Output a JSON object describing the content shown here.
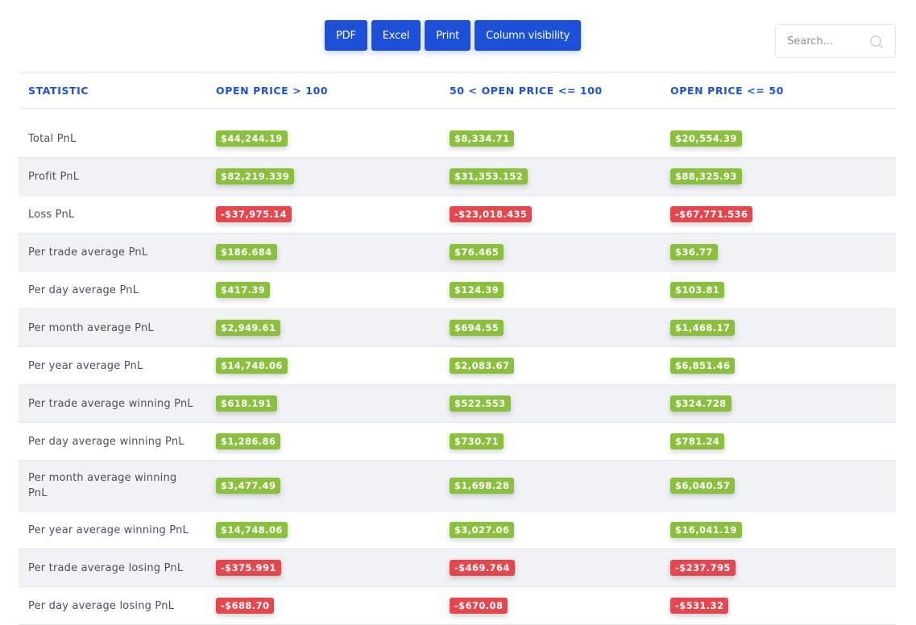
{
  "toolbar": {
    "buttons": [
      "PDF",
      "Excel",
      "Print",
      "Column visibility"
    ],
    "search_placeholder": "Search..."
  },
  "colors": {
    "accent": "#1d50d9",
    "positive": "#8bc03f",
    "negative": "#e5474f"
  },
  "table": {
    "headers": [
      "STATISTIC",
      "OPEN PRICE > 100",
      "50 < OPEN PRICE <= 100",
      "OPEN PRICE <= 50"
    ],
    "rows": [
      {
        "label": "Total PnL",
        "values": [
          "$44,244.19",
          "$8,334.71",
          "$20,554.39"
        ],
        "signs": [
          "pos",
          "pos",
          "pos"
        ]
      },
      {
        "label": "Profit PnL",
        "values": [
          "$82,219.339",
          "$31,353.152",
          "$88,325.93"
        ],
        "signs": [
          "pos",
          "pos",
          "pos"
        ]
      },
      {
        "label": "Loss PnL",
        "values": [
          "-$37,975.14",
          "-$23,018.435",
          "-$67,771.536"
        ],
        "signs": [
          "neg",
          "neg",
          "neg"
        ]
      },
      {
        "label": "Per trade average PnL",
        "values": [
          "$186.684",
          "$76.465",
          "$36.77"
        ],
        "signs": [
          "pos",
          "pos",
          "pos"
        ]
      },
      {
        "label": "Per day average PnL",
        "values": [
          "$417.39",
          "$124.39",
          "$103.81"
        ],
        "signs": [
          "pos",
          "pos",
          "pos"
        ]
      },
      {
        "label": "Per month average PnL",
        "values": [
          "$2,949.61",
          "$694.55",
          "$1,468.17"
        ],
        "signs": [
          "pos",
          "pos",
          "pos"
        ]
      },
      {
        "label": "Per year average PnL",
        "values": [
          "$14,748.06",
          "$2,083.67",
          "$6,851.46"
        ],
        "signs": [
          "pos",
          "pos",
          "pos"
        ]
      },
      {
        "label": "Per trade average winning PnL",
        "values": [
          "$618.191",
          "$522.553",
          "$324.728"
        ],
        "signs": [
          "pos",
          "pos",
          "pos"
        ]
      },
      {
        "label": "Per day average winning PnL",
        "values": [
          "$1,286.86",
          "$730.71",
          "$781.24"
        ],
        "signs": [
          "pos",
          "pos",
          "pos"
        ]
      },
      {
        "label": "Per month average winning PnL",
        "values": [
          "$3,477.49",
          "$1,698.28",
          "$6,040.57"
        ],
        "signs": [
          "pos",
          "pos",
          "pos"
        ]
      },
      {
        "label": "Per year average winning PnL",
        "values": [
          "$14,748.06",
          "$3,027.06",
          "$16,041.19"
        ],
        "signs": [
          "pos",
          "pos",
          "pos"
        ]
      },
      {
        "label": "Per trade average losing PnL",
        "values": [
          "-$375.991",
          "-$469.764",
          "-$237.795"
        ],
        "signs": [
          "neg",
          "neg",
          "neg"
        ]
      },
      {
        "label": "Per day average losing PnL",
        "values": [
          "-$688.70",
          "-$670.08",
          "-$531.32"
        ],
        "signs": [
          "neg",
          "neg",
          "neg"
        ]
      }
    ]
  }
}
